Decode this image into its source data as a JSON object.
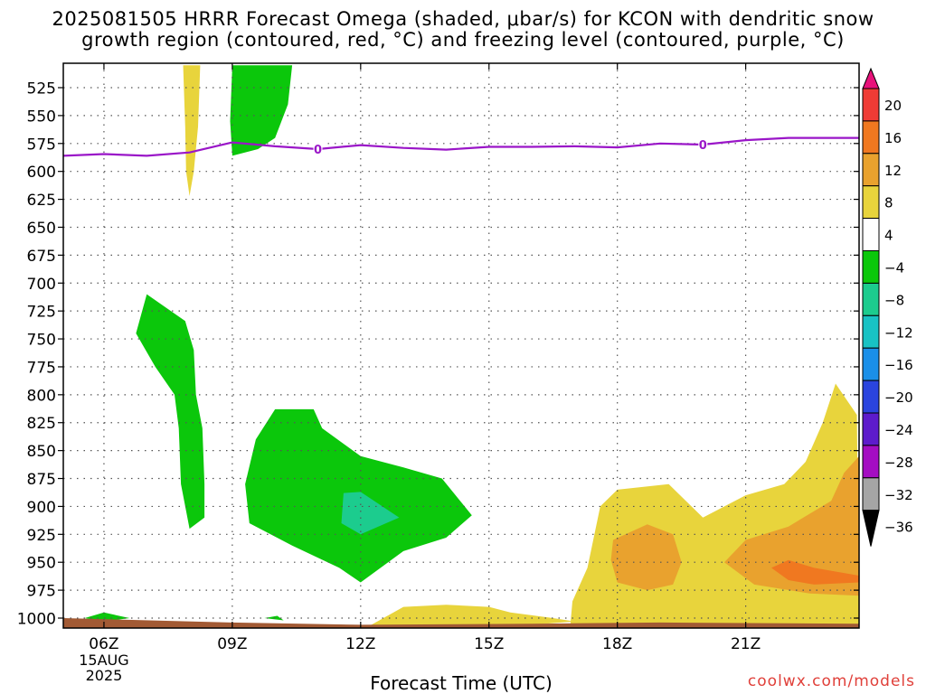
{
  "title_line1": "2025081505 HRRR Forecast Omega (shaded, μbar/s) for KCON with dendritic snow",
  "title_line2": "growth region (contoured, red, °C) and freezing level (contoured, purple, °C)",
  "xlabel": "Forecast Time (UTC)",
  "credit": "coolwx.com/models",
  "chart_data": {
    "type": "contour",
    "x_ticks": [
      {
        "h": 6,
        "label": "06Z"
      },
      {
        "h": 9,
        "label": "09Z"
      },
      {
        "h": 12,
        "label": "12Z"
      },
      {
        "h": 15,
        "label": "15Z"
      },
      {
        "h": 18,
        "label": "18Z"
      },
      {
        "h": 21,
        "label": "21Z"
      }
    ],
    "date_label": [
      "15AUG",
      "2025"
    ],
    "xlim": [
      5.05,
      23.65
    ],
    "y_ticks": [
      525,
      550,
      575,
      600,
      625,
      650,
      675,
      700,
      725,
      750,
      775,
      800,
      825,
      850,
      875,
      900,
      925,
      950,
      975,
      1000
    ],
    "colorbar": {
      "levels": [
        "20",
        "16",
        "12",
        "8",
        "4",
        "−4",
        "−8",
        "−12",
        "−16",
        "−20",
        "−24",
        "−28",
        "−32",
        "−36"
      ],
      "colors": [
        "#e8127a",
        "#ef3b35",
        "#f07820",
        "#e9a22e",
        "#e8d43c",
        "#ffffff",
        "#0bc70b",
        "#1ccc8e",
        "#18c2c4",
        "#1a8fe8",
        "#2a44de",
        "#5d1bcc",
        "#a40dc2",
        "#a5a5a5",
        "#000000"
      ]
    },
    "freezing_level": {
      "label": "0",
      "color": "#9a16c8",
      "points": [
        [
          5.05,
          586
        ],
        [
          6.0,
          584.5
        ],
        [
          7.0,
          586
        ],
        [
          8.0,
          583
        ],
        [
          9.0,
          574
        ],
        [
          10.0,
          577.5
        ],
        [
          11.0,
          580
        ],
        [
          12.0,
          576.5
        ],
        [
          13.0,
          579
        ],
        [
          14.0,
          580.5
        ],
        [
          15.0,
          578
        ],
        [
          16.0,
          578
        ],
        [
          17.0,
          577.5
        ],
        [
          18.0,
          578.5
        ],
        [
          19.0,
          575
        ],
        [
          20.0,
          576
        ],
        [
          21.0,
          572
        ],
        [
          22.0,
          570
        ],
        [
          23.65,
          570
        ]
      ],
      "label_positions": [
        11.0,
        20.0
      ]
    },
    "omega_regions": [
      {
        "color": "#e8d43c",
        "points": [
          [
            7.85,
            505
          ],
          [
            8.25,
            505
          ],
          [
            8.2,
            560
          ],
          [
            8.1,
            600
          ],
          [
            8.0,
            622
          ],
          [
            7.92,
            600
          ],
          [
            7.9,
            560
          ]
        ]
      },
      {
        "color": "#0bc70b",
        "points": [
          [
            9.0,
            505
          ],
          [
            10.4,
            505
          ],
          [
            10.3,
            540
          ],
          [
            10.0,
            570
          ],
          [
            9.6,
            580
          ],
          [
            9.0,
            586
          ],
          [
            8.95,
            555
          ]
        ]
      },
      {
        "color": "#0bc70b",
        "points": [
          [
            7.0,
            710
          ],
          [
            7.9,
            734
          ],
          [
            8.1,
            760
          ],
          [
            8.15,
            800
          ],
          [
            8.3,
            830
          ],
          [
            8.35,
            880
          ],
          [
            8.35,
            910
          ],
          [
            8.0,
            920
          ],
          [
            7.8,
            880
          ],
          [
            7.75,
            830
          ],
          [
            7.65,
            800
          ],
          [
            7.2,
            775
          ],
          [
            6.75,
            745
          ]
        ]
      },
      {
        "color": "#0bc70b",
        "points": [
          [
            10.0,
            813
          ],
          [
            10.9,
            813
          ],
          [
            11.1,
            830
          ],
          [
            12.0,
            855
          ],
          [
            13.0,
            865
          ],
          [
            13.9,
            875
          ],
          [
            14.6,
            908
          ],
          [
            14.0,
            928
          ],
          [
            13.0,
            940
          ],
          [
            12.0,
            968
          ],
          [
            11.5,
            955
          ],
          [
            10.4,
            935
          ],
          [
            9.4,
            915
          ],
          [
            9.3,
            880
          ],
          [
            9.55,
            840
          ]
        ]
      },
      {
        "color": "#1ccc8e",
        "points": [
          [
            11.6,
            888
          ],
          [
            12.0,
            887
          ],
          [
            12.9,
            910
          ],
          [
            12.0,
            925
          ],
          [
            11.55,
            915
          ]
        ]
      },
      {
        "color": "#0bc70b",
        "points": [
          [
            5.55,
            1000
          ],
          [
            6.0,
            995
          ],
          [
            6.6,
            1000
          ],
          [
            6.0,
            1003
          ]
        ]
      },
      {
        "color": "#0bc70b",
        "points": [
          [
            9.75,
            1000
          ],
          [
            10.05,
            998
          ],
          [
            10.2,
            1002
          ]
        ]
      },
      {
        "color": "#e8d43c",
        "points": [
          [
            12.2,
            1007
          ],
          [
            13.0,
            990
          ],
          [
            14.0,
            988
          ],
          [
            15.0,
            990
          ],
          [
            15.5,
            995
          ],
          [
            16.5,
            1000
          ],
          [
            17.0,
            1003
          ],
          [
            16.0,
            1006
          ]
        ]
      },
      {
        "color": "#e8d43c",
        "points": [
          [
            16.9,
            1007
          ],
          [
            16.95,
            985
          ],
          [
            17.3,
            955
          ],
          [
            17.6,
            900
          ],
          [
            18.0,
            885
          ],
          [
            19.2,
            880
          ],
          [
            20.0,
            910
          ],
          [
            21.0,
            890
          ],
          [
            21.9,
            880
          ],
          [
            22.4,
            860
          ],
          [
            22.8,
            825
          ],
          [
            23.1,
            790
          ],
          [
            23.6,
            818
          ],
          [
            23.65,
            1007
          ]
        ]
      },
      {
        "color": "#e9a22e",
        "points": [
          [
            17.9,
            930
          ],
          [
            18.7,
            916
          ],
          [
            19.3,
            925
          ],
          [
            19.5,
            950
          ],
          [
            19.3,
            970
          ],
          [
            18.7,
            975
          ],
          [
            18.0,
            968
          ],
          [
            17.85,
            948
          ]
        ]
      },
      {
        "color": "#e9a22e",
        "points": [
          [
            20.5,
            950
          ],
          [
            21.0,
            930
          ],
          [
            22.0,
            918
          ],
          [
            23.0,
            895
          ],
          [
            23.3,
            870
          ],
          [
            23.65,
            855
          ],
          [
            23.65,
            980
          ],
          [
            22.5,
            978
          ],
          [
            21.2,
            970
          ]
        ]
      },
      {
        "color": "#f07820",
        "points": [
          [
            21.6,
            955
          ],
          [
            22.0,
            948
          ],
          [
            22.6,
            955
          ],
          [
            23.65,
            962
          ],
          [
            23.65,
            968
          ],
          [
            22.6,
            970
          ],
          [
            22.0,
            966
          ]
        ]
      }
    ],
    "ground_band": {
      "color": "#a25a34",
      "top": [
        [
          5.05,
          1000
        ],
        [
          9.0,
          1004
        ],
        [
          12.0,
          1006
        ],
        [
          16.0,
          1005
        ],
        [
          19.0,
          1004
        ],
        [
          23.65,
          1005
        ]
      ]
    }
  }
}
